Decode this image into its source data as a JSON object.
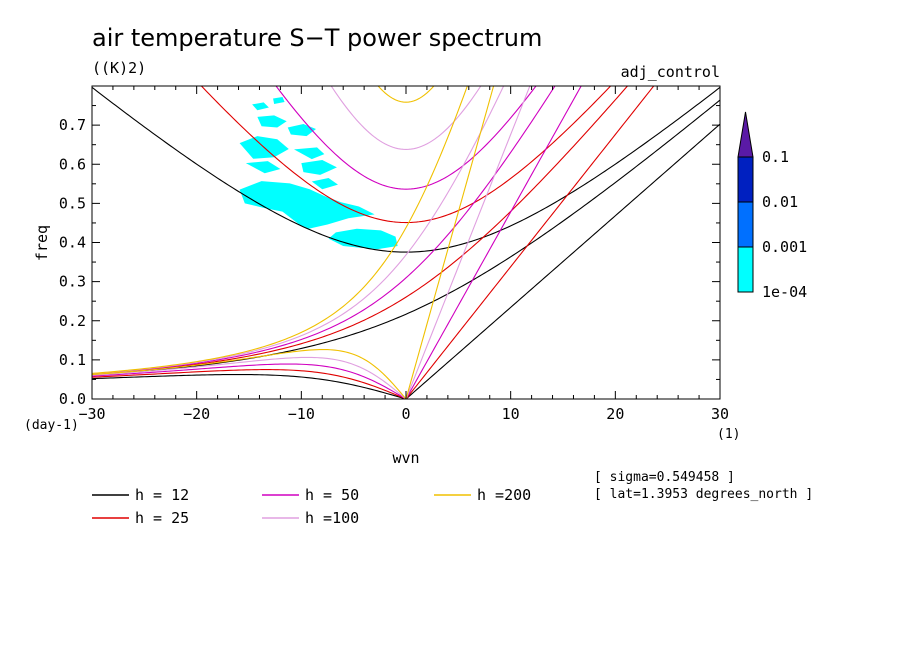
{
  "chart_data": {
    "type": "line",
    "title": "air temperature S−T power spectrum",
    "units_label": "((K)2)",
    "run_label": "adj_control",
    "xlabel": "wvn",
    "ylabel": "freq",
    "x_unit": "(1)",
    "y_unit": "(day-1)",
    "xlim": [
      -30,
      30
    ],
    "ylim": [
      0,
      0.8
    ],
    "x_ticks": [
      -30,
      -20,
      -10,
      0,
      10,
      20,
      30
    ],
    "y_ticks": [
      0.0,
      0.1,
      0.2,
      0.3,
      0.4,
      0.5,
      0.6,
      0.7
    ],
    "x_tick_labels": [
      "−30",
      "−20",
      "−10",
      "0",
      "10",
      "20",
      "30"
    ],
    "y_tick_labels": [
      "0.0",
      "0.1",
      "0.2",
      "0.3",
      "0.4",
      "0.5",
      "0.6",
      "0.7"
    ],
    "colorbar": {
      "labels": [
        "0.1",
        "0.01",
        "0.001",
        "1e-04"
      ],
      "levels": [
        0.0001,
        0.001,
        0.01,
        0.1
      ],
      "colors": [
        "#00ffff",
        "#0070ff",
        "#0020c0",
        "#5a1aa6"
      ]
    },
    "info": [
      "[ sigma=0.549458 ]",
      "[ lat=1.3953 degrees_north ]"
    ],
    "series": [
      {
        "name": "h = 12",
        "h": 12,
        "color": "#000000"
      },
      {
        "name": "h = 25",
        "h": 25,
        "color": "#e00000"
      },
      {
        "name": "h = 50",
        "h": 50,
        "color": "#d000c0"
      },
      {
        "name": "h =100",
        "h": 100,
        "color": "#e0a0e0"
      },
      {
        "name": "h =200",
        "h": 200,
        "color": "#f0c000"
      }
    ],
    "shading_regions": [
      {
        "x": [
          -15.9,
          -13.8,
          -11.1,
          -9.2,
          -7.8,
          -6.2,
          -4.5,
          -3.0,
          -5.5,
          -7.5,
          -9.3,
          -10.2,
          -11.8,
          -13.5,
          -15.4
        ],
        "y": [
          0.535,
          0.557,
          0.551,
          0.536,
          0.519,
          0.503,
          0.492,
          0.472,
          0.462,
          0.446,
          0.435,
          0.446,
          0.479,
          0.488,
          0.5
        ]
      },
      {
        "x": [
          -6.7,
          -4.7,
          -2.4,
          -1.0,
          -0.8,
          -2.7,
          -4.5,
          -6.0,
          -7.4
        ],
        "y": [
          0.426,
          0.435,
          0.431,
          0.415,
          0.391,
          0.383,
          0.387,
          0.391,
          0.41
        ]
      },
      {
        "x": [
          -15.9,
          -14.2,
          -12.3,
          -11.2,
          -12.6,
          -14.6
        ],
        "y": [
          0.654,
          0.672,
          0.664,
          0.639,
          0.618,
          0.614
        ]
      },
      {
        "x": [
          -14.2,
          -12.6,
          -11.4,
          -12.3,
          -13.8
        ],
        "y": [
          0.721,
          0.725,
          0.71,
          0.694,
          0.697
        ]
      },
      {
        "x": [
          -15.3,
          -13.2,
          -12.0,
          -13.5
        ],
        "y": [
          0.603,
          0.608,
          0.588,
          0.577
        ]
      },
      {
        "x": [
          -11.3,
          -9.8,
          -8.6,
          -9.5,
          -11.0
        ],
        "y": [
          0.694,
          0.703,
          0.69,
          0.672,
          0.676
        ]
      },
      {
        "x": [
          -10.7,
          -8.5,
          -7.8,
          -9.0
        ],
        "y": [
          0.638,
          0.643,
          0.626,
          0.613
        ]
      },
      {
        "x": [
          -10.0,
          -8.0,
          -6.6,
          -8.2,
          -9.8
        ],
        "y": [
          0.603,
          0.611,
          0.592,
          0.573,
          0.58
        ]
      },
      {
        "x": [
          -9.0,
          -7.4,
          -6.5,
          -8.0
        ],
        "y": [
          0.556,
          0.565,
          0.548,
          0.536
        ]
      },
      {
        "x": [
          -14.7,
          -13.6,
          -13.1,
          -14.2
        ],
        "y": [
          0.753,
          0.758,
          0.745,
          0.738
        ]
      },
      {
        "x": [
          -12.7,
          -11.8,
          -11.6,
          -12.6
        ],
        "y": [
          0.768,
          0.772,
          0.759,
          0.754
        ]
      }
    ]
  }
}
